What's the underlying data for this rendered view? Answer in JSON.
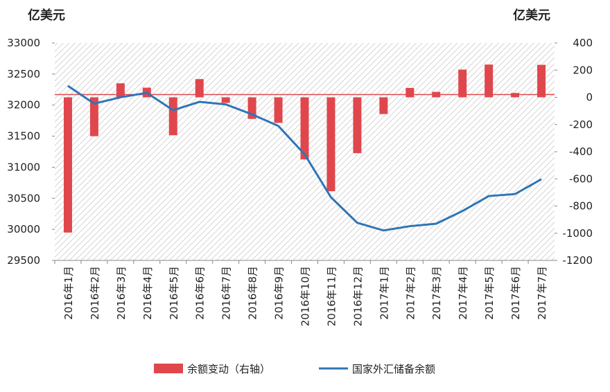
{
  "chart_data": {
    "type": "bar-line",
    "y_label": "亿美元",
    "y2_label": "亿美元",
    "categories": [
      "2016年1月",
      "2016年2月",
      "2016年3月",
      "2016年4月",
      "2016年5月",
      "2016年6月",
      "2016年7月",
      "2016年8月",
      "2016年9月",
      "2016年10月",
      "2016年11月",
      "2016年12月",
      "2017年1月",
      "2017年2月",
      "2017年3月",
      "2017年4月",
      "2017年5月",
      "2017年6月",
      "2017年7月"
    ],
    "series": [
      {
        "name": "余额变动（右轴）",
        "type": "bar",
        "axis": "y2",
        "color": "#e0474c",
        "values": [
          -995,
          -286,
          103,
          71,
          -279,
          134,
          -41,
          -159,
          -188,
          -457,
          -691,
          -411,
          -123,
          69,
          40,
          204,
          241,
          32,
          239
        ]
      },
      {
        "name": "国家外汇储备余额",
        "type": "line",
        "axis": "y",
        "color": "#2e75b6",
        "values": [
          32309,
          32023,
          32126,
          32197,
          31917,
          32052,
          32011,
          31851,
          31664,
          31207,
          30516,
          30105,
          29982,
          30051,
          30091,
          30295,
          30536,
          30568,
          30807
        ]
      }
    ],
    "ylim": [
      29500,
      33000
    ],
    "yticks": [
      29500,
      30000,
      30500,
      31000,
      31500,
      32000,
      32500,
      33000
    ],
    "y2lim": [
      -1200,
      400
    ],
    "y2ticks": [
      -1200,
      -1000,
      -800,
      -600,
      -400,
      -200,
      0,
      200,
      400
    ]
  }
}
